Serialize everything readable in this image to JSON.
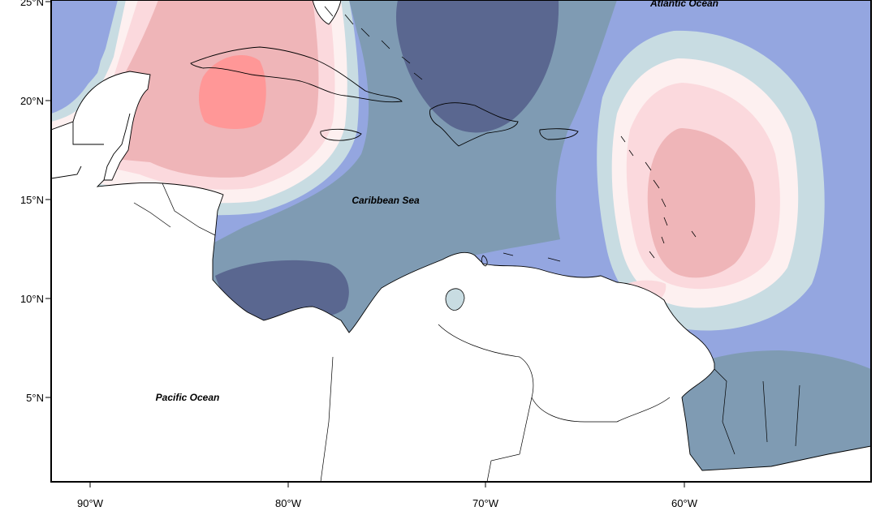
{
  "map": {
    "ocean_labels": {
      "atlantic": "Atlantic Ocean",
      "caribbean": "Caribbean Sea",
      "pacific": "Pacific Ocean"
    },
    "lat_ticks": [
      "25°N",
      "20°N",
      "15°N",
      "10°N",
      "5°N"
    ],
    "lon_ticks": [
      "90°W",
      "80°W",
      "70°W",
      "60°W"
    ],
    "colors": {
      "dark_blue": "#5a6790",
      "slate_blue": "#7f9bb3",
      "periwinkle": "#94a6e0",
      "pale_blue": "#c8dce2",
      "near_white": "#fdf0f0",
      "light_pink": "#fbd9dd",
      "pink": "#efb5b8",
      "salmon": "#ff9797",
      "land": "#ffffff",
      "coast": "#000000"
    }
  }
}
